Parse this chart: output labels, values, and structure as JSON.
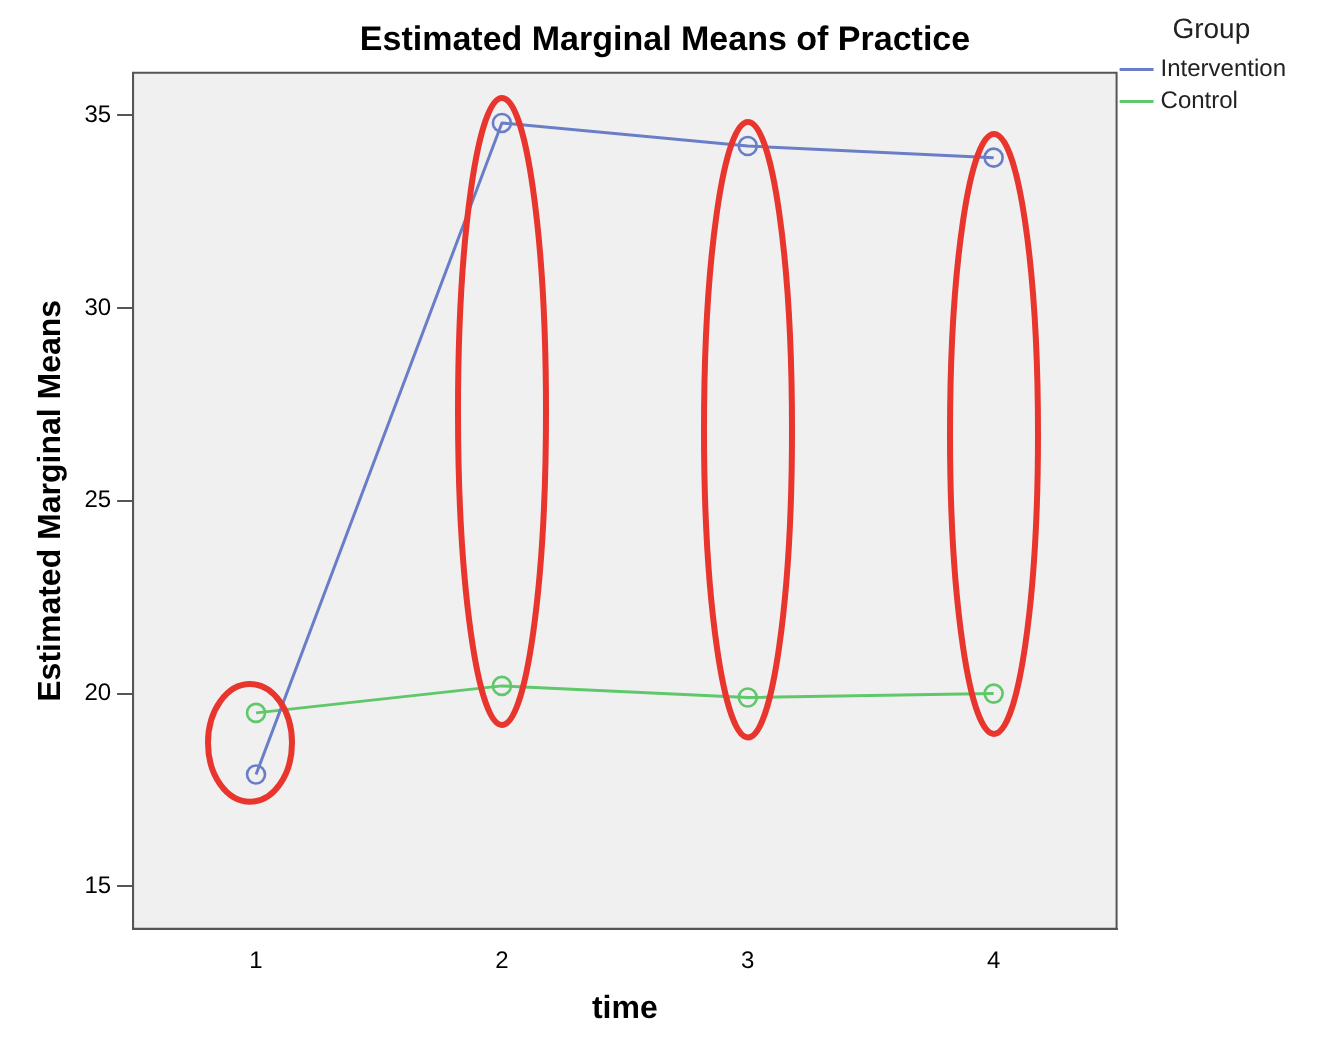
{
  "chart_data": {
    "type": "line",
    "title": "Estimated Marginal Means of Practice",
    "xlabel": "time",
    "ylabel": "Estimated Marginal Means",
    "legend_title": "Group",
    "categories": [
      "1",
      "2",
      "3",
      "4"
    ],
    "series": [
      {
        "name": "Intervention",
        "color": "#6a7ec8",
        "values": [
          17.9,
          34.8,
          34.2,
          33.9
        ]
      },
      {
        "name": "Control",
        "color": "#5ec86a",
        "values": [
          19.5,
          20.2,
          19.9,
          20.0
        ]
      }
    ],
    "ylim": [
      13.9,
      36.1
    ],
    "yticks": [
      15,
      20,
      25,
      30,
      35
    ],
    "grid": false,
    "legend": "top right",
    "marker": "circle",
    "line_style": "solid"
  }
}
